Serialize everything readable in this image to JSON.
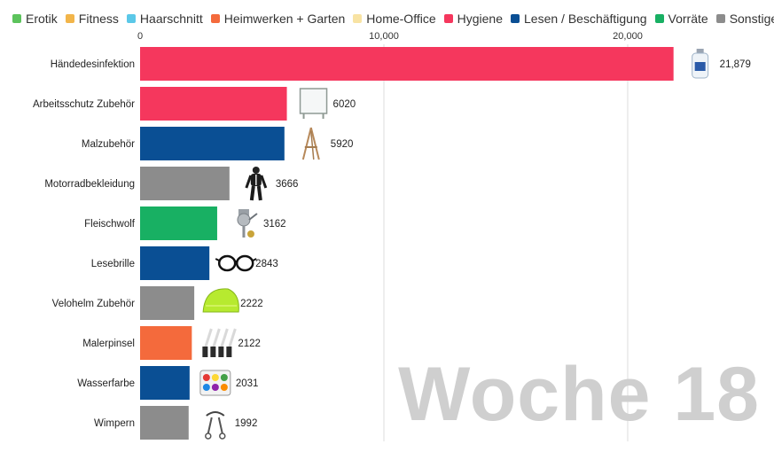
{
  "legend": [
    {
      "label": "Erotik",
      "color": "#5cc35c"
    },
    {
      "label": "Fitness",
      "color": "#f2b54a"
    },
    {
      "label": "Haarschnitt",
      "color": "#5bc8e8"
    },
    {
      "label": "Heimwerken + Garten",
      "color": "#f46a3c"
    },
    {
      "label": "Home-Office",
      "color": "#f8e3a3"
    },
    {
      "label": "Hygiene",
      "color": "#f5375d"
    },
    {
      "label": "Lesen / Beschäftigung",
      "color": "#0a4f94"
    },
    {
      "label": "Vorräte",
      "color": "#18b063"
    },
    {
      "label": "Sonstiges",
      "color": "#8c8c8c"
    }
  ],
  "watermark": "Woche 18",
  "chart_data": {
    "type": "bar",
    "orientation": "horizontal",
    "xlim": [
      0,
      25000
    ],
    "ticks": [
      {
        "value": 0,
        "label": "0"
      },
      {
        "value": 10000,
        "label": "10,000"
      },
      {
        "value": 20000,
        "label": "20,000"
      }
    ],
    "grid": true,
    "categories": [
      "Händedesinfektion",
      "Arbeitsschutz Zubehör",
      "Malzubehör",
      "Motorradbekleidung",
      "Fleischwolf",
      "Lesebrille",
      "Velohelm Zubehör",
      "Malerpinsel",
      "Wasserfarbe",
      "Wimpern"
    ],
    "values": [
      21879,
      6020,
      5920,
      3666,
      3162,
      2843,
      2222,
      2122,
      2031,
      1992
    ],
    "value_labels": [
      "21,879",
      "6020",
      "5920",
      "3666",
      "3162",
      "2843",
      "2222",
      "2122",
      "2031",
      "1992"
    ],
    "bar_groups": [
      "Hygiene",
      "Hygiene",
      "Lesen / Beschäftigung",
      "Sonstiges",
      "Vorräte",
      "Lesen / Beschäftigung",
      "Sonstiges",
      "Heimwerken + Garten",
      "Lesen / Beschäftigung",
      "Sonstiges"
    ],
    "icons": [
      "sanitizer-bottle-icon",
      "protective-screen-icon",
      "easel-icon",
      "motorcycle-suit-icon",
      "meat-grinder-icon",
      "reading-glasses-icon",
      "helmet-cover-icon",
      "paint-brushes-icon",
      "watercolor-set-icon",
      "eyelash-curler-icon"
    ]
  }
}
